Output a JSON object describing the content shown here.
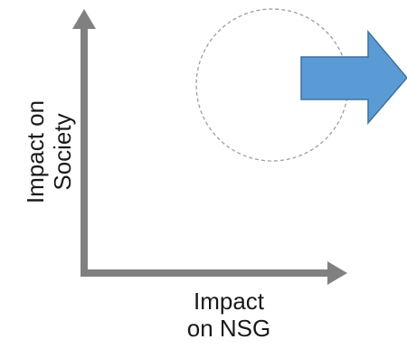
{
  "y_axis_label": {
    "line1": "Impact on",
    "line2": "Society"
  },
  "x_axis_label": {
    "line1": "Impact",
    "line2": "on NSG"
  },
  "colors": {
    "axis": "#808080",
    "circle_outline": "#9e9e9e",
    "arrow_fill": "#5b9bd5",
    "arrow_stroke": "#41719c"
  }
}
